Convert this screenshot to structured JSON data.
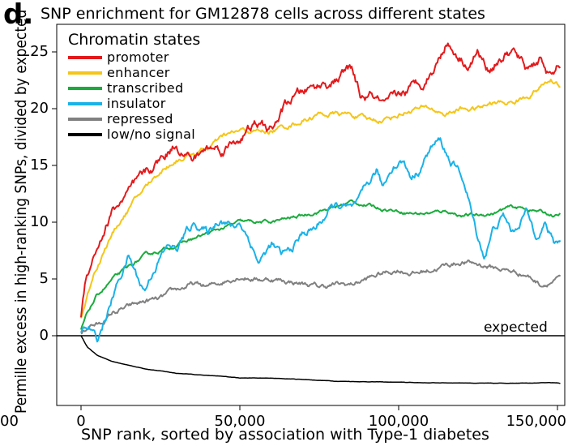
{
  "panel_label": "d.",
  "chart_data": {
    "type": "line",
    "title": "SNP enrichment for GM12878 cells across different states",
    "xlabel": "SNP rank, sorted by association with Type-1 diabetes",
    "ylabel": "Permille excess in high-ranking SNPs, divided by expected",
    "xlim": [
      0,
      150000
    ],
    "ylim": [
      -6,
      27
    ],
    "x_ticks": [
      {
        "value": 0,
        "label": "0"
      },
      {
        "value": 50000,
        "label": "50,000"
      },
      {
        "value": 100000,
        "label": "100,000"
      },
      {
        "value": 150000,
        "label": "150,000"
      }
    ],
    "x_tick_clipped_label": "00",
    "y_ticks": [
      {
        "value": 0,
        "label": "0"
      },
      {
        "value": 5,
        "label": "5"
      },
      {
        "value": 10,
        "label": "10"
      },
      {
        "value": 15,
        "label": "15"
      },
      {
        "value": 20,
        "label": "20"
      },
      {
        "value": 25,
        "label": "25"
      }
    ],
    "reference_line": {
      "y": 0,
      "label": "expected"
    },
    "legend": {
      "title": "Chromatin states",
      "placement": "top-left"
    },
    "series": [
      {
        "name": "promoter",
        "color": "#e31a1c",
        "noise": 0.6,
        "points": [
          [
            0,
            1.5
          ],
          [
            1500,
            5
          ],
          [
            3000,
            6.5
          ],
          [
            6000,
            8.5
          ],
          [
            10000,
            11
          ],
          [
            15000,
            12.5
          ],
          [
            20000,
            14
          ],
          [
            25000,
            15.5
          ],
          [
            30000,
            17
          ],
          [
            35000,
            15.5
          ],
          [
            40000,
            16.5
          ],
          [
            45000,
            16.5
          ],
          [
            50000,
            17.5
          ],
          [
            55000,
            18.5
          ],
          [
            60000,
            18
          ],
          [
            65000,
            20.5
          ],
          [
            70000,
            21.5
          ],
          [
            75000,
            22
          ],
          [
            80000,
            22.5
          ],
          [
            85000,
            23.5
          ],
          [
            88000,
            21
          ],
          [
            92000,
            21
          ],
          [
            96000,
            20
          ],
          [
            100000,
            21
          ],
          [
            105000,
            22
          ],
          [
            108000,
            22.5
          ],
          [
            112000,
            24
          ],
          [
            115000,
            26
          ],
          [
            118000,
            25
          ],
          [
            122000,
            24
          ],
          [
            125000,
            25
          ],
          [
            128000,
            23.5
          ],
          [
            132000,
            24.5
          ],
          [
            136000,
            25
          ],
          [
            140000,
            23.5
          ],
          [
            145000,
            24.5
          ],
          [
            148000,
            22.5
          ],
          [
            151000,
            24
          ]
        ]
      },
      {
        "name": "enhancer",
        "color": "#f5c518",
        "noise": 0.3,
        "points": [
          [
            0,
            1.5
          ],
          [
            1500,
            3
          ],
          [
            4000,
            5.5
          ],
          [
            8000,
            8
          ],
          [
            12000,
            10
          ],
          [
            16000,
            11.5
          ],
          [
            20000,
            13
          ],
          [
            25000,
            14.5
          ],
          [
            30000,
            15.5
          ],
          [
            35000,
            16
          ],
          [
            40000,
            16.5
          ],
          [
            45000,
            17.5
          ],
          [
            50000,
            18
          ],
          [
            55000,
            18
          ],
          [
            60000,
            18
          ],
          [
            65000,
            18.5
          ],
          [
            70000,
            19
          ],
          [
            75000,
            19.5
          ],
          [
            80000,
            19.5
          ],
          [
            85000,
            19.5
          ],
          [
            90000,
            19
          ],
          [
            95000,
            19
          ],
          [
            100000,
            19.5
          ],
          [
            105000,
            20
          ],
          [
            110000,
            20
          ],
          [
            115000,
            19.5
          ],
          [
            120000,
            20
          ],
          [
            125000,
            20
          ],
          [
            130000,
            20.5
          ],
          [
            135000,
            20.5
          ],
          [
            140000,
            21
          ],
          [
            145000,
            22
          ],
          [
            148000,
            22.5
          ],
          [
            151000,
            22
          ]
        ]
      },
      {
        "name": "transcribed",
        "color": "#1aab3c",
        "noise": 0.2,
        "points": [
          [
            0,
            0.5
          ],
          [
            2000,
            2
          ],
          [
            5000,
            3.5
          ],
          [
            10000,
            5
          ],
          [
            15000,
            6
          ],
          [
            20000,
            7
          ],
          [
            25000,
            7.5
          ],
          [
            30000,
            8
          ],
          [
            35000,
            8.5
          ],
          [
            40000,
            9
          ],
          [
            45000,
            9.5
          ],
          [
            50000,
            10
          ],
          [
            55000,
            10
          ],
          [
            60000,
            10
          ],
          [
            65000,
            10.3
          ],
          [
            70000,
            10.6
          ],
          [
            75000,
            11
          ],
          [
            80000,
            11.3
          ],
          [
            85000,
            11.8
          ],
          [
            90000,
            11.5
          ],
          [
            95000,
            11.2
          ],
          [
            100000,
            11
          ],
          [
            105000,
            10.8
          ],
          [
            110000,
            10.8
          ],
          [
            115000,
            11
          ],
          [
            120000,
            10.6
          ],
          [
            125000,
            10.6
          ],
          [
            130000,
            10.8
          ],
          [
            135000,
            11.3
          ],
          [
            140000,
            11.2
          ],
          [
            145000,
            10.9
          ],
          [
            150000,
            10.5
          ],
          [
            151000,
            10.7
          ]
        ]
      },
      {
        "name": "insulator",
        "color": "#1ab2e8",
        "noise": 0.5,
        "points": [
          [
            0,
            0.5
          ],
          [
            3000,
            0.5
          ],
          [
            5000,
            -0.5
          ],
          [
            7000,
            1
          ],
          [
            9000,
            2.5
          ],
          [
            12000,
            5
          ],
          [
            15000,
            7
          ],
          [
            18000,
            5
          ],
          [
            20000,
            4
          ],
          [
            23000,
            6
          ],
          [
            25000,
            7
          ],
          [
            28000,
            8
          ],
          [
            30000,
            7.5
          ],
          [
            33000,
            9
          ],
          [
            36000,
            10
          ],
          [
            40000,
            9
          ],
          [
            44000,
            10.5
          ],
          [
            48000,
            9.5
          ],
          [
            50000,
            10
          ],
          [
            53000,
            8.5
          ],
          [
            56000,
            6.5
          ],
          [
            60000,
            8
          ],
          [
            63000,
            7
          ],
          [
            66000,
            7.5
          ],
          [
            70000,
            9
          ],
          [
            74000,
            9.5
          ],
          [
            78000,
            11
          ],
          [
            82000,
            11.5
          ],
          [
            85000,
            11
          ],
          [
            88000,
            11.8
          ],
          [
            90000,
            13
          ],
          [
            93000,
            14.5
          ],
          [
            95000,
            13
          ],
          [
            98000,
            15
          ],
          [
            101000,
            15.5
          ],
          [
            104000,
            14
          ],
          [
            106000,
            14.5
          ],
          [
            110000,
            16.5
          ],
          [
            113000,
            17.2
          ],
          [
            116000,
            15.5
          ],
          [
            120000,
            14
          ],
          [
            122000,
            12
          ],
          [
            124000,
            9.5
          ],
          [
            127000,
            7
          ],
          [
            130000,
            9.5
          ],
          [
            133000,
            10.5
          ],
          [
            136000,
            9
          ],
          [
            140000,
            11
          ],
          [
            143000,
            9
          ],
          [
            146000,
            10
          ],
          [
            149000,
            8
          ],
          [
            151000,
            8.5
          ]
        ]
      },
      {
        "name": "repressed",
        "color": "#808080",
        "noise": 0.3,
        "points": [
          [
            0,
            0.2
          ],
          [
            3000,
            1
          ],
          [
            6000,
            1
          ],
          [
            10000,
            2
          ],
          [
            15000,
            2.5
          ],
          [
            20000,
            3
          ],
          [
            25000,
            3.2
          ],
          [
            30000,
            4
          ],
          [
            35000,
            4.5
          ],
          [
            40000,
            4.3
          ],
          [
            45000,
            4.8
          ],
          [
            50000,
            5.3
          ],
          [
            55000,
            5
          ],
          [
            60000,
            5
          ],
          [
            65000,
            4.8
          ],
          [
            70000,
            4.6
          ],
          [
            75000,
            4.3
          ],
          [
            80000,
            4.5
          ],
          [
            85000,
            4.5
          ],
          [
            90000,
            5
          ],
          [
            95000,
            5.5
          ],
          [
            100000,
            5.8
          ],
          [
            105000,
            5.5
          ],
          [
            110000,
            5.8
          ],
          [
            115000,
            6.2
          ],
          [
            120000,
            6.5
          ],
          [
            125000,
            6.3
          ],
          [
            130000,
            6
          ],
          [
            135000,
            5.7
          ],
          [
            140000,
            5.4
          ],
          [
            145000,
            4.5
          ],
          [
            148000,
            4.8
          ],
          [
            151000,
            5
          ]
        ]
      },
      {
        "name": "low/no signal",
        "color": "#000000",
        "noise": 0.02,
        "points": [
          [
            0,
            0
          ],
          [
            2000,
            -1
          ],
          [
            5000,
            -1.7
          ],
          [
            10000,
            -2.3
          ],
          [
            15000,
            -2.6
          ],
          [
            20000,
            -2.9
          ],
          [
            25000,
            -3.1
          ],
          [
            30000,
            -3.3
          ],
          [
            40000,
            -3.5
          ],
          [
            50000,
            -3.7
          ],
          [
            60000,
            -3.75
          ],
          [
            70000,
            -3.85
          ],
          [
            80000,
            -4.0
          ],
          [
            90000,
            -4.05
          ],
          [
            100000,
            -4.1
          ],
          [
            110000,
            -4.15
          ],
          [
            120000,
            -4.15
          ],
          [
            130000,
            -4.2
          ],
          [
            140000,
            -4.15
          ],
          [
            150000,
            -4.15
          ],
          [
            151000,
            -4.2
          ]
        ]
      }
    ]
  }
}
